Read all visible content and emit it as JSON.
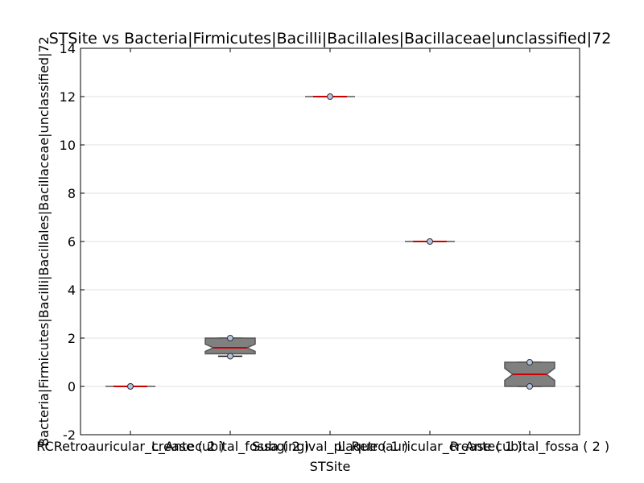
{
  "chart_data": {
    "type": "box",
    "title": "STSite vs Bacteria|Firmicutes|Bacilli|Bacillales|Bacillaceae|unclassified|72",
    "xlabel": "STSite",
    "ylabel": "Bacteria|Firmicutes|Bacilli|Bacillales|Bacillaceae|unclassified|72",
    "ylim": [
      -2,
      14
    ],
    "yticks": [
      -2,
      0,
      2,
      4,
      6,
      8,
      10,
      12,
      14
    ],
    "grid": "horizontal",
    "legend": "none",
    "categories": [
      "RCRetroauricular_crease ( 2 )",
      "L_Antecubital_fossa ( 2 )",
      "Subgingival_plaque ( 1 )",
      "L_Retroauricular_crease ( 1 )",
      "R_Antecubital_fossa ( 2 )"
    ],
    "boxes": [
      {
        "median": 0.0,
        "q1": 0.0,
        "q3": 0.0,
        "whisker_low": 0.0,
        "whisker_high": 0.0,
        "notch_low": 0.0,
        "notch_high": 0.0,
        "points": [
          0.0,
          0.0
        ]
      },
      {
        "median": 1.6,
        "q1": 1.35,
        "q3": 2.0,
        "whisker_low": 1.25,
        "whisker_high": 2.0,
        "notch_low": 1.45,
        "notch_high": 1.75,
        "points": [
          2.0,
          1.25
        ]
      },
      {
        "median": 12.0,
        "q1": 12.0,
        "q3": 12.0,
        "whisker_low": 12.0,
        "whisker_high": 12.0,
        "notch_low": 12.0,
        "notch_high": 12.0,
        "points": [
          12.0
        ]
      },
      {
        "median": 6.0,
        "q1": 6.0,
        "q3": 6.0,
        "whisker_low": 6.0,
        "whisker_high": 6.0,
        "notch_low": 6.0,
        "notch_high": 6.0,
        "points": [
          6.0
        ]
      },
      {
        "median": 0.5,
        "q1": 0.0,
        "q3": 1.0,
        "whisker_low": 0.0,
        "whisker_high": 1.0,
        "notch_low": 0.25,
        "notch_high": 0.75,
        "points": [
          1.0,
          0.0
        ]
      }
    ],
    "colors": {
      "box_fill": "#808080",
      "box_edge": "#555555",
      "median": "#cc0000",
      "point_fill": "#b0c4de",
      "point_edge": "#333333",
      "grid": "#e0e0e0"
    }
  }
}
